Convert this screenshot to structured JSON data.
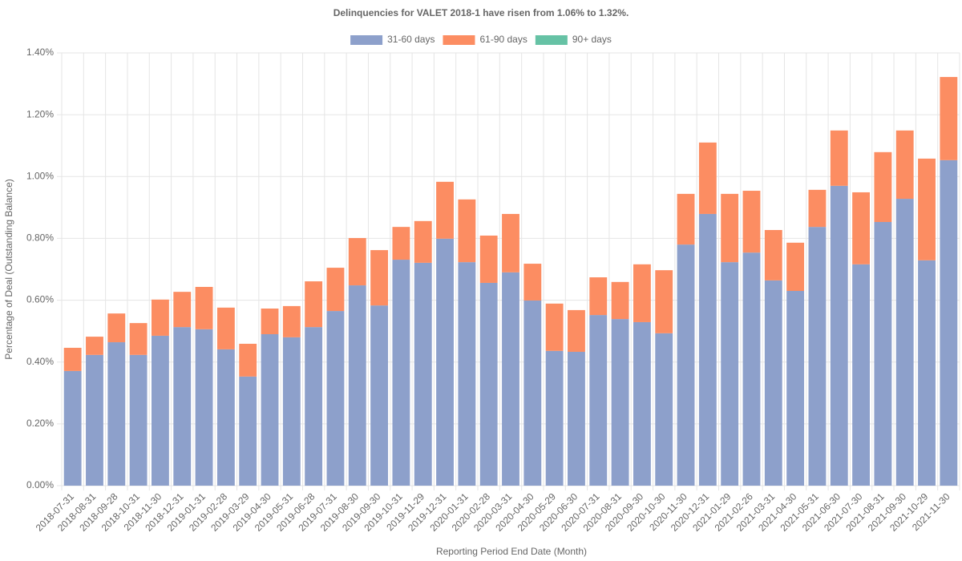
{
  "chart_data": {
    "type": "stacked-bar",
    "title": "Delinquencies for VALET 2018-1 have risen from 1.06% to 1.32%.",
    "x_label": "Reporting Period End Date (Month)",
    "y_label": "Percentage of Deal (Outstanding Balance)",
    "categories": [
      "2018-07-31",
      "2018-08-31",
      "2018-09-28",
      "2018-10-31",
      "2018-11-30",
      "2018-12-31",
      "2019-01-31",
      "2019-02-28",
      "2019-03-29",
      "2019-04-30",
      "2019-05-31",
      "2019-06-28",
      "2019-07-31",
      "2019-08-30",
      "2019-09-30",
      "2019-10-31",
      "2019-11-29",
      "2019-12-31",
      "2020-01-31",
      "2020-02-28",
      "2020-03-31",
      "2020-04-30",
      "2020-05-29",
      "2020-06-30",
      "2020-07-31",
      "2020-08-31",
      "2020-09-30",
      "2020-10-30",
      "2020-11-30",
      "2020-12-31",
      "2021-01-29",
      "2021-02-26",
      "2021-03-31",
      "2021-04-30",
      "2021-05-31",
      "2021-06-30",
      "2021-07-30",
      "2021-08-31",
      "2021-09-30",
      "2021-10-29",
      "2021-11-30"
    ],
    "series": [
      {
        "name": "31-60 days",
        "color": "#8da0cb",
        "values": [
          0.371,
          0.423,
          0.464,
          0.423,
          0.485,
          0.513,
          0.506,
          0.441,
          0.353,
          0.49,
          0.48,
          0.513,
          0.565,
          0.648,
          0.583,
          0.731,
          0.721,
          0.799,
          0.723,
          0.656,
          0.69,
          0.599,
          0.436,
          0.433,
          0.552,
          0.539,
          0.529,
          0.493,
          0.78,
          0.879,
          0.723,
          0.754,
          0.664,
          0.63,
          0.837,
          0.97,
          0.716,
          0.853,
          0.928,
          0.729,
          1.053
        ]
      },
      {
        "name": "61-90 days",
        "color": "#fc8d62",
        "values": [
          0.075,
          0.059,
          0.093,
          0.103,
          0.117,
          0.114,
          0.137,
          0.135,
          0.106,
          0.083,
          0.101,
          0.148,
          0.14,
          0.153,
          0.179,
          0.106,
          0.135,
          0.184,
          0.203,
          0.153,
          0.189,
          0.119,
          0.153,
          0.135,
          0.122,
          0.12,
          0.187,
          0.204,
          0.164,
          0.231,
          0.221,
          0.2,
          0.163,
          0.156,
          0.12,
          0.179,
          0.233,
          0.226,
          0.221,
          0.329,
          0.269
        ]
      },
      {
        "name": "90+ days",
        "color": "#66c2a5",
        "values": [
          0,
          0,
          0,
          0,
          0,
          0,
          0,
          0,
          0,
          0,
          0,
          0,
          0,
          0,
          0,
          0,
          0,
          0,
          0,
          0,
          0,
          0,
          0,
          0,
          0,
          0,
          0,
          0,
          0,
          0,
          0,
          0,
          0,
          0,
          0,
          0,
          0,
          0,
          0,
          0,
          0
        ]
      }
    ],
    "ylim": [
      0,
      1.4
    ],
    "yticks": [
      {
        "value": 0,
        "label": "0.00%"
      },
      {
        "value": 0.2,
        "label": "0.20%"
      },
      {
        "value": 0.4,
        "label": "0.40%"
      },
      {
        "value": 0.6,
        "label": "0.60%"
      },
      {
        "value": 0.8,
        "label": "0.80%"
      },
      {
        "value": 1.0,
        "label": "1.00%"
      },
      {
        "value": 1.2,
        "label": "1.20%"
      },
      {
        "value": 1.4,
        "label": "1.40%"
      }
    ],
    "grid": true,
    "legend": "top"
  }
}
